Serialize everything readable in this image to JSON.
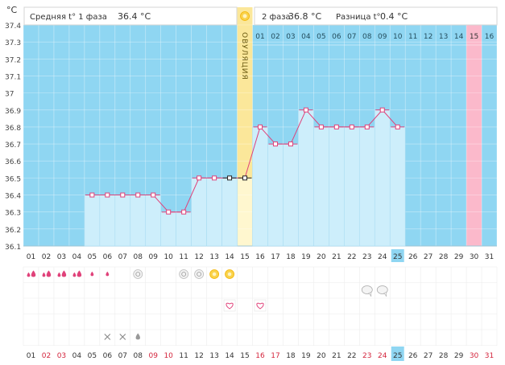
{
  "header": {
    "unit": "°C",
    "phase1_label": "Средняя t° 1 фаза",
    "phase1_value": "36.4 °C",
    "phase2_label": "2 фаза",
    "phase2_value": "36.8 °C",
    "diff_label": "Разница t°",
    "diff_value": "0.4 °C"
  },
  "ovulation_label": "ОВУЛЯЦИЯ",
  "phase2_day_numbers": [
    "01",
    "02",
    "03",
    "04",
    "05",
    "06",
    "07",
    "08",
    "09",
    "10",
    "11",
    "12",
    "13",
    "14",
    "15",
    "16"
  ],
  "day_labels_top": [
    "01",
    "02",
    "03",
    "04",
    "05",
    "06",
    "07",
    "08",
    "09",
    "10",
    "11",
    "12",
    "13",
    "14",
    "15",
    "16",
    "17",
    "18",
    "19",
    "20",
    "21",
    "22",
    "23",
    "24",
    "25",
    "26",
    "27",
    "28",
    "29",
    "30",
    "31"
  ],
  "day_labels_bottom": [
    "01",
    "02",
    "03",
    "04",
    "05",
    "06",
    "07",
    "08",
    "09",
    "10",
    "11",
    "12",
    "13",
    "14",
    "15",
    "16",
    "17",
    "18",
    "19",
    "20",
    "21",
    "22",
    "23",
    "24",
    "25",
    "26",
    "27",
    "28",
    "29",
    "30",
    "31"
  ],
  "current_day_index": 24,
  "bottom_red_indices": [
    1,
    2,
    8,
    9,
    15,
    16,
    22,
    23,
    29,
    30
  ],
  "colors": {
    "area": "#cdeefb",
    "area_stroke": "#aadcf2",
    "no_data": "#8fd6f2",
    "ovulation": "#fbe79a",
    "ovulation_light": "#fff7cf",
    "highlight_day": "#fbb9cb",
    "line": "#e0427a",
    "marker_fill": "#ffffff",
    "current_day": "#8fd6f2",
    "drop": "#e0427a",
    "red_label": "#d4253d"
  },
  "chart_data": {
    "type": "line",
    "y_axis_unit": "°C",
    "ylim": [
      36.1,
      37.4
    ],
    "y_ticks": [
      "36.1",
      "36.2",
      "36.3",
      "36.4",
      "36.5",
      "36.6",
      "36.7",
      "36.8",
      "36.9",
      "37",
      "37.1",
      "37.2",
      "37.3",
      "37.4"
    ],
    "x": [
      "01",
      "02",
      "03",
      "04",
      "05",
      "06",
      "07",
      "08",
      "09",
      "10",
      "11",
      "12",
      "13",
      "14",
      "15",
      "16",
      "17",
      "18",
      "19",
      "20",
      "21",
      "22",
      "23",
      "24",
      "25",
      "26",
      "27",
      "28",
      "29",
      "30",
      "31"
    ],
    "values": [
      null,
      null,
      null,
      null,
      36.4,
      36.4,
      36.4,
      36.4,
      36.4,
      36.3,
      36.3,
      36.5,
      36.5,
      36.5,
      36.5,
      36.8,
      36.7,
      36.7,
      36.9,
      36.8,
      36.8,
      36.8,
      36.8,
      36.9,
      36.8,
      null,
      null,
      null,
      null,
      null,
      null
    ],
    "ovulation_day": "15",
    "highlight_day": "30",
    "grid": true
  },
  "symbols": {
    "drops": [
      {
        "day": 0,
        "size": "large",
        "count": 2
      },
      {
        "day": 1,
        "size": "large",
        "count": 2
      },
      {
        "day": 2,
        "size": "large",
        "count": 2
      },
      {
        "day": 3,
        "size": "large",
        "count": 2
      },
      {
        "day": 4,
        "size": "small",
        "count": 1
      },
      {
        "day": 5,
        "size": "small",
        "count": 1
      }
    ],
    "spirals": [
      7,
      10,
      11
    ],
    "suns": [
      12,
      13
    ],
    "speech": [
      22,
      23
    ],
    "hearts": [
      13,
      15
    ],
    "crosses": [
      5,
      6
    ],
    "gray_drop": [
      7
    ]
  }
}
